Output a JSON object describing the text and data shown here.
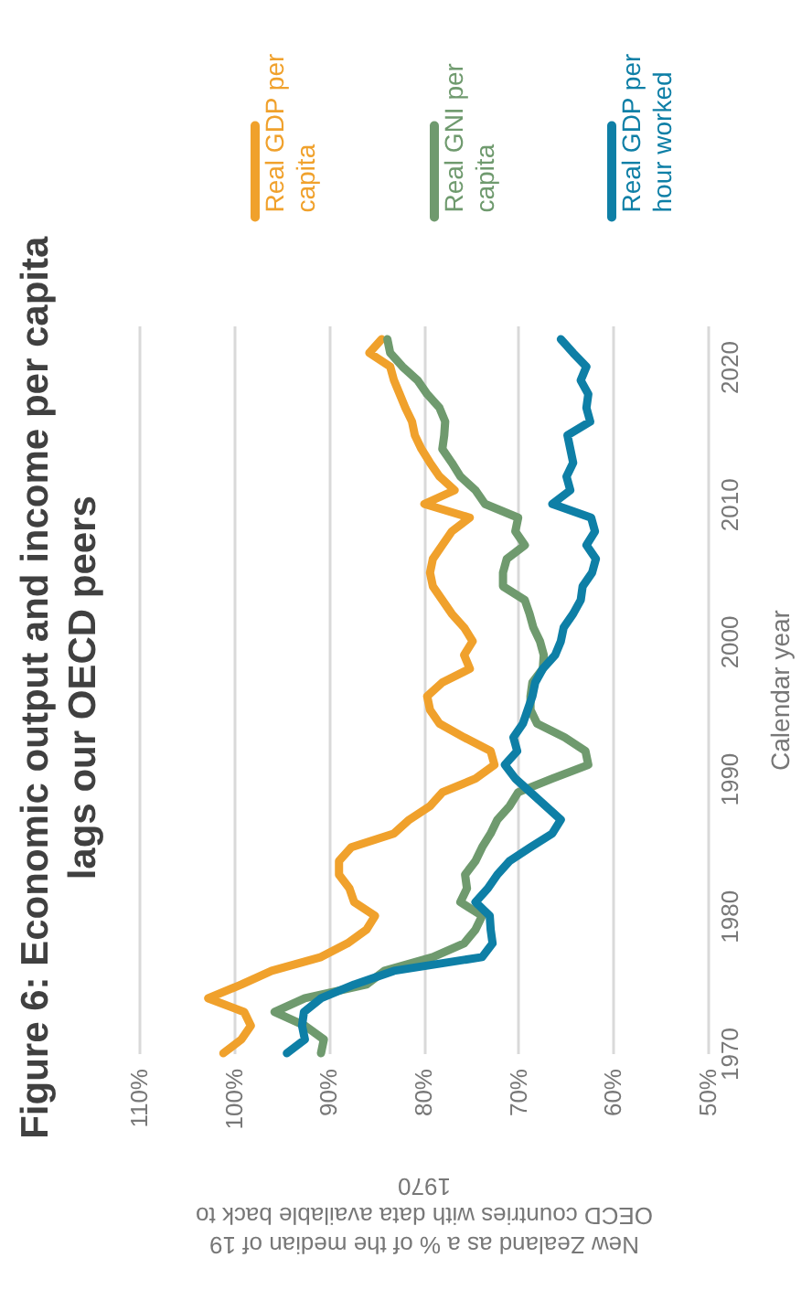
{
  "chart_data": {
    "type": "line",
    "orientation": "horizontal",
    "title": "Figure 6: Economic output and income per capita lags our OECD peers",
    "ylabel": "Calendar year",
    "xlabel": "New Zealand as a % of the median of 19 OECD countries with data available back to 1970",
    "x": [
      1970,
      1971,
      1972,
      1973,
      1974,
      1975,
      1976,
      1977,
      1978,
      1979,
      1980,
      1981,
      1982,
      1983,
      1984,
      1985,
      1986,
      1987,
      1988,
      1989,
      1990,
      1991,
      1992,
      1993,
      1994,
      1995,
      1996,
      1997,
      1998,
      1999,
      2000,
      2001,
      2002,
      2003,
      2004,
      2005,
      2006,
      2007,
      2008,
      2009,
      2010,
      2011,
      2012,
      2013,
      2014,
      2015,
      2016,
      2017,
      2018,
      2019,
      2020,
      2021,
      2022
    ],
    "series": [
      {
        "name": "Real GDP per capita",
        "color": "#f0a12c",
        "values": [
          101.1,
          99.2,
          98.2,
          98.9,
          102.7,
          99.2,
          96.0,
          90.8,
          88.0,
          86.0,
          85.1,
          87.3,
          87.8,
          88.9,
          88.9,
          87.6,
          83.1,
          81.5,
          79.3,
          78.0,
          74.5,
          72.5,
          72.9,
          75.7,
          78.3,
          79.3,
          79.6,
          78.0,
          75.1,
          75.7,
          74.8,
          75.7,
          77.0,
          78.0,
          79.0,
          79.3,
          79.0,
          78.0,
          77.0,
          75.1,
          79.9,
          76.7,
          78.3,
          79.3,
          80.2,
          80.9,
          81.2,
          81.9,
          82.5,
          83.1,
          83.5,
          85.7,
          84.4
        ]
      },
      {
        "name": "Real GNI per capita",
        "color": "#6f9a6e",
        "values": [
          90.8,
          90.5,
          92.5,
          95.7,
          92.5,
          86.0,
          84.1,
          79.0,
          75.7,
          74.5,
          73.8,
          76.1,
          75.4,
          75.6,
          74.5,
          73.8,
          72.9,
          72.2,
          70.9,
          70.0,
          66.4,
          62.6,
          62.9,
          65.1,
          68.0,
          68.7,
          68.7,
          68.5,
          67.4,
          67.3,
          67.7,
          68.4,
          68.8,
          69.3,
          71.6,
          71.6,
          71.2,
          69.3,
          70.3,
          70.0,
          73.5,
          74.5,
          76.1,
          77.0,
          78.0,
          77.8,
          77.7,
          78.3,
          79.6,
          80.6,
          82.2,
          83.5,
          83.8
        ]
      },
      {
        "name": "Real GDP per hour worked",
        "color": "#0e7fa6",
        "values": [
          94.4,
          92.5,
          92.8,
          92.6,
          90.8,
          87.3,
          83.1,
          73.8,
          72.7,
          72.9,
          73.0,
          74.5,
          73.2,
          72.2,
          70.9,
          68.7,
          66.4,
          65.5,
          67.1,
          68.7,
          70.3,
          71.4,
          70.1,
          70.5,
          69.5,
          69.0,
          68.5,
          68.2,
          67.4,
          66.1,
          65.5,
          65.2,
          64.2,
          63.4,
          63.2,
          62.2,
          61.8,
          62.8,
          61.9,
          62.3,
          66.4,
          64.5,
          64.9,
          64.2,
          64.5,
          64.8,
          62.4,
          62.8,
          62.6,
          63.4,
          62.8,
          64.2,
          65.5
        ]
      }
    ],
    "ylim": [
      1970,
      2023
    ],
    "yticks": [
      1970,
      1980,
      1990,
      2000,
      2010,
      2020
    ],
    "xlim": [
      110,
      50
    ],
    "xticks": [
      {
        "value": 110,
        "label": "110%"
      },
      {
        "value": 100,
        "label": "100%"
      },
      {
        "value": 90,
        "label": "90%"
      },
      {
        "value": 80,
        "label": "80%"
      },
      {
        "value": 70,
        "label": "70%"
      },
      {
        "value": 60,
        "label": "60%"
      },
      {
        "value": 50,
        "label": "50%"
      }
    ],
    "grid": "x",
    "legend": "top",
    "marker": "none",
    "line_style": "solid"
  }
}
